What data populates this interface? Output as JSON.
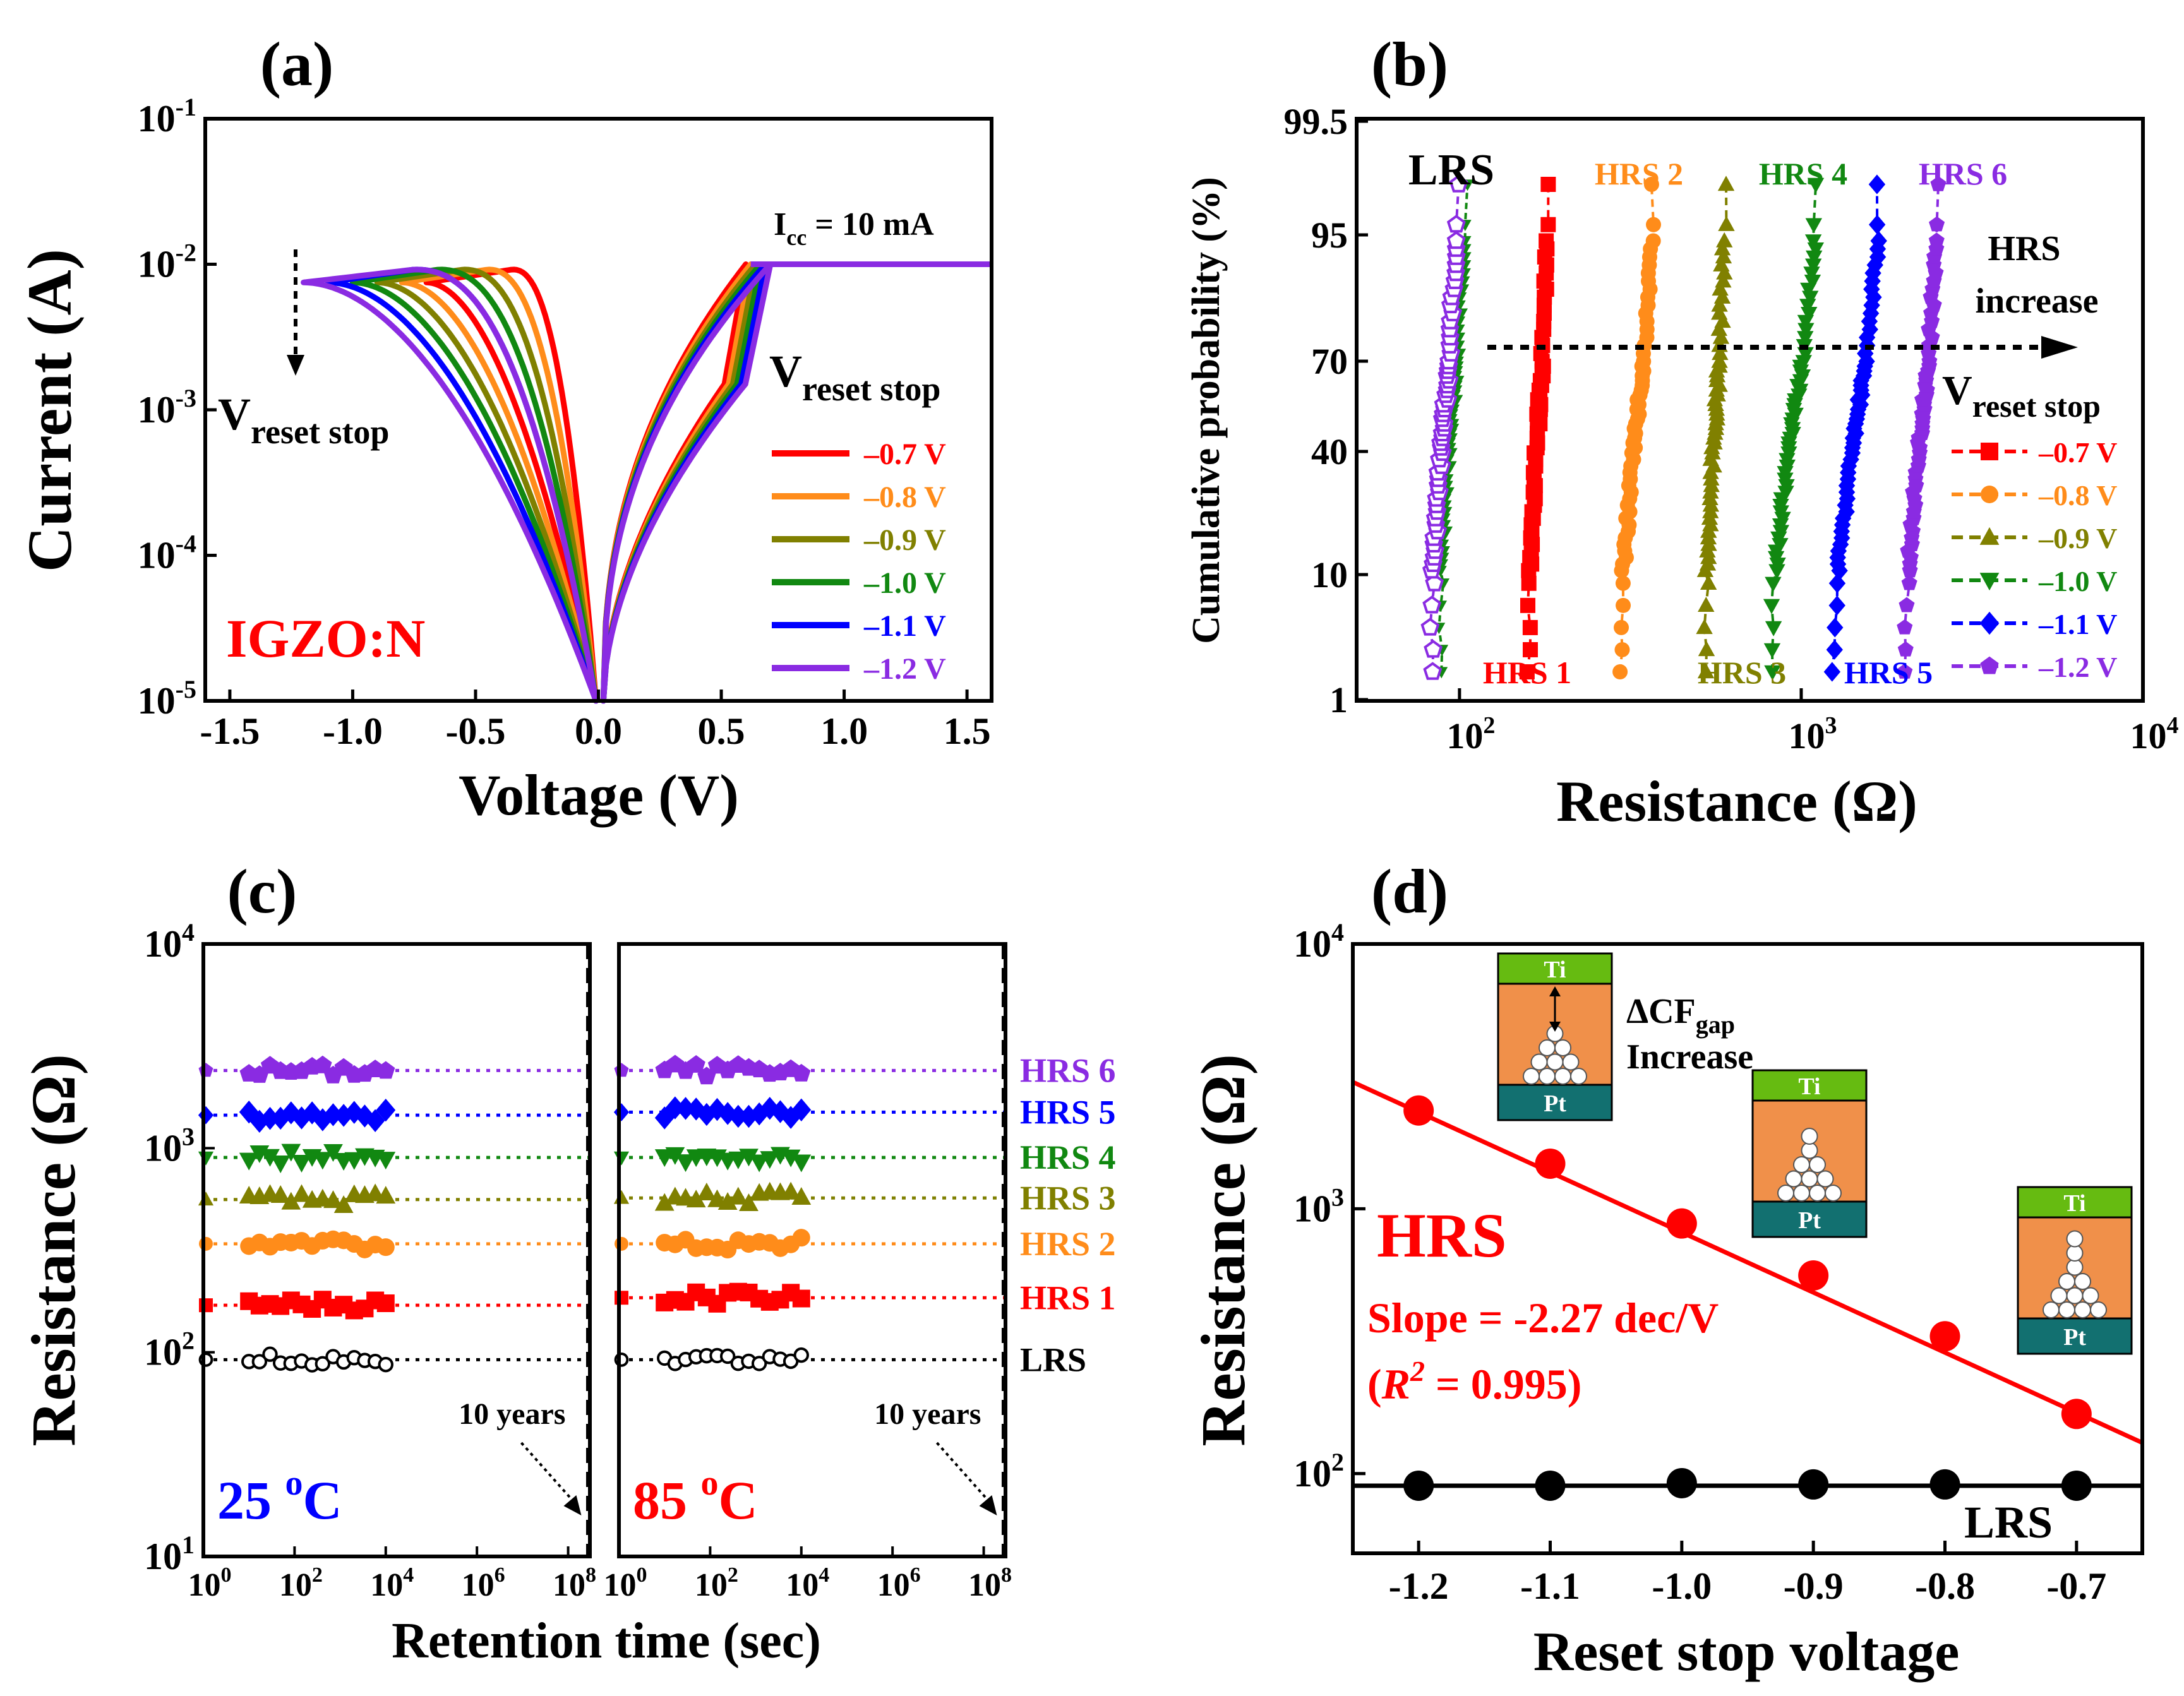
{
  "colors": {
    "v07": "#ff0000",
    "v08": "#ff8c1a",
    "v09": "#808000",
    "v10": "#118811",
    "v11": "#0000ff",
    "v12": "#8a2be2",
    "lrs": "#000000",
    "ti": "#66bb11",
    "oxide": "#f0904a",
    "pt": "#127070"
  },
  "legend_labels": [
    "–0.7 V",
    "–0.8 V",
    "–0.9 V",
    "–1.0 V",
    "–1.1 V",
    "–1.2 V"
  ],
  "chart_data": [
    {
      "id": "a",
      "panel_label": "(a)",
      "type": "line",
      "title": "",
      "xlabel": "Voltage (V)",
      "ylabel": "Current (A)",
      "xlim": [
        -1.6,
        1.6
      ],
      "ylim": [
        1e-05,
        0.1
      ],
      "yscale": "log",
      "x_ticks": [
        -1.5,
        -1.0,
        -0.5,
        0.0,
        0.5,
        1.0,
        1.5
      ],
      "x_tick_labels": [
        "-1.5",
        "-1.0",
        "-0.5",
        "0.0",
        "0.5",
        "1.0",
        "1.5"
      ],
      "y_tick_labels": [
        {
          "base": "10",
          "exp": "-1"
        },
        {
          "base": "10",
          "exp": "-2"
        },
        {
          "base": "10",
          "exp": "-3"
        },
        {
          "base": "10",
          "exp": "-4"
        },
        {
          "base": "10",
          "exp": "-5"
        }
      ],
      "compliance_label": {
        "main": "I",
        "sub": "cc",
        "rest": " = 10 mA"
      },
      "compliance_current": 0.01,
      "material_label": "IGZO:N",
      "annotation": {
        "main": "V",
        "sub": "reset stop"
      },
      "legend_title": {
        "main": "V",
        "sub": "reset stop"
      },
      "series": [
        {
          "name": "–0.7 V",
          "reset_stop": -0.7,
          "set_voltage": 0.6
        },
        {
          "name": "–0.8 V",
          "reset_stop": -0.8,
          "set_voltage": 0.62
        },
        {
          "name": "–0.9 V",
          "reset_stop": -0.9,
          "set_voltage": 0.64
        },
        {
          "name": "–1.0 V",
          "reset_stop": -1.0,
          "set_voltage": 0.66
        },
        {
          "name": "–1.1 V",
          "reset_stop": -1.1,
          "set_voltage": 0.68
        },
        {
          "name": "–1.2 V",
          "reset_stop": -1.2,
          "set_voltage": 0.7
        }
      ]
    },
    {
      "id": "b",
      "panel_label": "(b)",
      "type": "scatter",
      "title": "",
      "xlabel": "Resistance (Ω)",
      "ylabel": "Cumulative probability (%)",
      "xscale": "log",
      "xlim": [
        50,
        10000
      ],
      "x_tick_labels": [
        {
          "base": "10",
          "exp": "2"
        },
        {
          "base": "10",
          "exp": "3"
        },
        {
          "base": "10",
          "exp": "4"
        }
      ],
      "y_ticks": [
        1,
        10,
        40,
        70,
        95,
        99.5
      ],
      "y_tick_labels": [
        "1",
        "10",
        "40",
        "70",
        "95",
        "99.5"
      ],
      "arrow_label": [
        "HRS",
        "increase"
      ],
      "legend_title": {
        "main": "V",
        "sub": "reset stop"
      },
      "series": [
        {
          "name": "LRS",
          "label": "LRS",
          "center_ohm": 90,
          "spread": 0.04,
          "marker": "hollow-pentagon"
        },
        {
          "name": "–0.7 V",
          "label": "HRS 1",
          "center_ohm": 170,
          "spread": 0.03,
          "marker": "square"
        },
        {
          "name": "–0.8 V",
          "label": "HRS 2",
          "center_ohm": 330,
          "spread": 0.05,
          "marker": "circle"
        },
        {
          "name": "–0.9 V",
          "label": "HRS 3",
          "center_ohm": 560,
          "spread": 0.03,
          "marker": "triangle-up"
        },
        {
          "name": "–1.0 V",
          "label": "HRS 4",
          "center_ohm": 950,
          "spread": 0.07,
          "marker": "triangle-down"
        },
        {
          "name": "–1.1 V",
          "label": "HRS 5",
          "center_ohm": 1450,
          "spread": 0.07,
          "marker": "diamond"
        },
        {
          "name": "–1.2 V",
          "label": "HRS 6",
          "center_ohm": 2250,
          "spread": 0.05,
          "marker": "pentagon"
        }
      ]
    },
    {
      "id": "c",
      "panel_label": "(c)",
      "type": "scatter",
      "title": "",
      "xlabel": "Retention time (sec)",
      "ylabel": "Resistance (Ω)",
      "xscale": "log",
      "yscale": "log",
      "xlim": [
        1,
        300000000
      ],
      "ylim": [
        10,
        10000
      ],
      "x_tick_labels": [
        {
          "base": "10",
          "exp": "0"
        },
        {
          "base": "10",
          "exp": "2"
        },
        {
          "base": "10",
          "exp": "4"
        },
        {
          "base": "10",
          "exp": "6"
        },
        {
          "base": "10",
          "exp": "8"
        }
      ],
      "y_tick_labels": [
        {
          "base": "10",
          "exp": "4"
        },
        {
          "base": "10",
          "exp": "3"
        },
        {
          "base": "10",
          "exp": "2"
        },
        {
          "base": "10",
          "exp": "1"
        }
      ],
      "ten_years_label": "10 years",
      "ten_years_sec": 315360000,
      "subpanels": [
        {
          "temp_label": "25",
          "temp_sup": "o",
          "temp_unit": "C",
          "color": "#0000ff"
        },
        {
          "temp_label": "85",
          "temp_sup": "o",
          "temp_unit": "C",
          "color": "#ff0000"
        }
      ],
      "series": [
        {
          "name": "HRS 6",
          "label": "HRS 6",
          "r_25C": 2400,
          "r_85C": 2400,
          "marker": "pentagon",
          "color_key": "v12"
        },
        {
          "name": "HRS 5",
          "label": "HRS 5",
          "r_25C": 1450,
          "r_85C": 1500,
          "marker": "diamond",
          "color_key": "v11"
        },
        {
          "name": "HRS 4",
          "label": "HRS 4",
          "r_25C": 900,
          "r_85C": 900,
          "marker": "triangle-down",
          "color_key": "v10"
        },
        {
          "name": "HRS 3",
          "label": "HRS 3",
          "r_25C": 560,
          "r_85C": 570,
          "marker": "triangle-up",
          "color_key": "v09"
        },
        {
          "name": "HRS 2",
          "label": "HRS 2",
          "r_25C": 340,
          "r_85C": 340,
          "marker": "circle",
          "color_key": "v08"
        },
        {
          "name": "HRS 1",
          "label": "HRS 1",
          "r_25C": 170,
          "r_85C": 185,
          "marker": "square",
          "color_key": "v07"
        },
        {
          "name": "LRS",
          "label": "LRS",
          "r_25C": 92,
          "r_85C": 92,
          "marker": "hollow-circle",
          "color_key": "lrs"
        }
      ]
    },
    {
      "id": "d",
      "panel_label": "(d)",
      "type": "scatter",
      "title": "",
      "xlabel": "Reset stop voltage",
      "ylabel": "Resistance (Ω)",
      "yscale": "log",
      "xlim": [
        -1.25,
        -0.65
      ],
      "ylim": [
        50,
        10000
      ],
      "x_ticks": [
        -1.2,
        -1.1,
        -1.0,
        -0.9,
        -0.8,
        -0.7
      ],
      "x_tick_labels": [
        "-1.2",
        "-1.1",
        "-1.0",
        "-0.9",
        "-0.8",
        "-0.7"
      ],
      "y_tick_labels": [
        {
          "base": "10",
          "exp": "4"
        },
        {
          "base": "10",
          "exp": "3"
        },
        {
          "base": "10",
          "exp": "2"
        }
      ],
      "series": [
        {
          "name": "HRS",
          "x": [
            -1.2,
            -1.1,
            -1.0,
            -0.9,
            -0.8,
            -0.7
          ],
          "y": [
            2350,
            1480,
            880,
            560,
            330,
            168
          ]
        },
        {
          "name": "LRS",
          "x": [
            -1.2,
            -1.1,
            -1.0,
            -0.9,
            -0.8,
            -0.7
          ],
          "y": [
            90,
            90,
            92,
            91,
            91,
            90
          ]
        }
      ],
      "hrs_label": "HRS",
      "lrs_label": "LRS",
      "slope_text": "Slope = -2.27 dec/V",
      "r2_text": {
        "open": "(",
        "r": "R",
        "sup": "2",
        "rest": " = 0.995)"
      },
      "slope_dec_per_v": -2.27,
      "fit_intercept_log10_at_minus_0_7": 2.23,
      "lrs_level": 90,
      "inset_ti": "Ti",
      "inset_pt": "Pt",
      "gap_label": {
        "main": "ΔCF",
        "sub": "gap"
      },
      "gap_label_2": "Increase"
    }
  ]
}
